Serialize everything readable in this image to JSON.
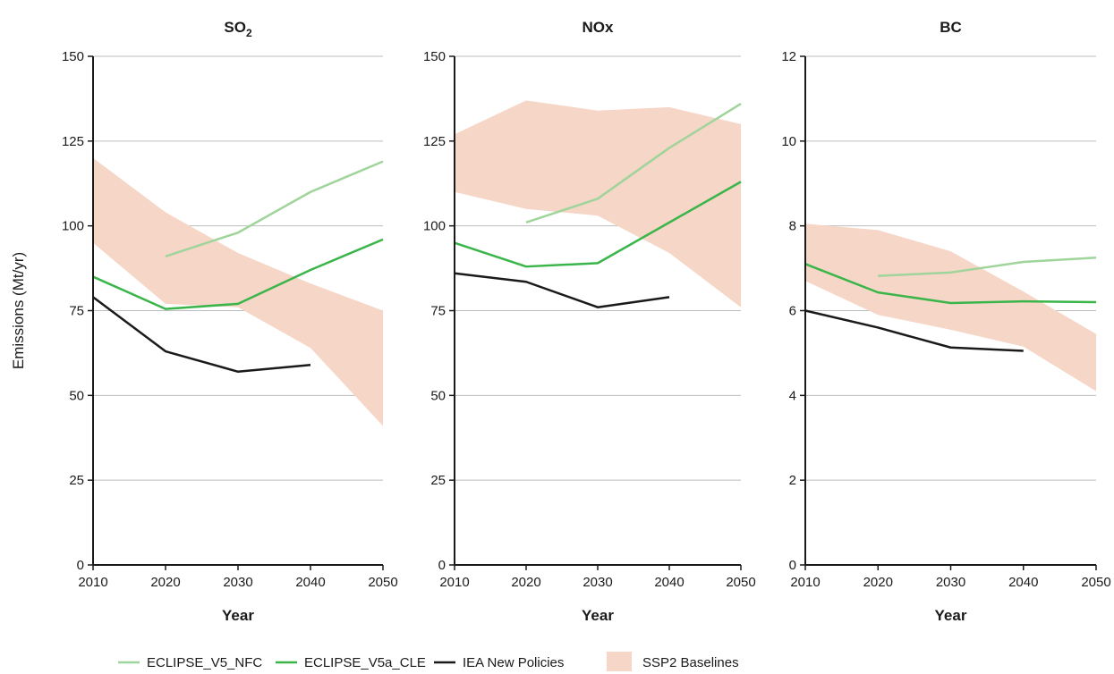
{
  "chart_data": [
    {
      "type": "line",
      "title": "SO",
      "title_subscript": "2",
      "xlabel": "Year",
      "ylabel": "Emissions (Mt/yr)",
      "xlim": [
        2010,
        2050
      ],
      "ylim": [
        0,
        150
      ],
      "xticks": [
        2010,
        2020,
        2030,
        2040,
        2050
      ],
      "yticks": [
        0,
        25,
        50,
        75,
        100,
        125,
        150
      ],
      "grid": "horizontal",
      "band": {
        "name": "SSP2 Baselines",
        "x": [
          2010,
          2020,
          2030,
          2040,
          2050
        ],
        "lower": [
          95,
          77,
          76,
          64,
          41
        ],
        "upper": [
          120,
          104,
          92,
          83,
          75
        ]
      },
      "series": [
        {
          "name": "ECLIPSE_V5_NFC",
          "x": [
            2020,
            2030,
            2040,
            2050
          ],
          "y": [
            91,
            98,
            110,
            119
          ]
        },
        {
          "name": "ECLIPSE_V5a_CLE",
          "x": [
            2010,
            2020,
            2030,
            2040,
            2050
          ],
          "y": [
            85,
            75.5,
            77,
            87,
            96
          ]
        },
        {
          "name": "IEA New Policies",
          "x": [
            2010,
            2020,
            2030,
            2040
          ],
          "y": [
            79,
            63,
            57,
            59
          ]
        }
      ]
    },
    {
      "type": "line",
      "title": "NOx",
      "title_subscript": "",
      "xlabel": "Year",
      "ylabel": "",
      "xlim": [
        2010,
        2050
      ],
      "ylim": [
        0,
        150
      ],
      "xticks": [
        2010,
        2020,
        2030,
        2040,
        2050
      ],
      "yticks": [
        0,
        25,
        50,
        75,
        100,
        125,
        150
      ],
      "grid": "horizontal",
      "band": {
        "name": "SSP2 Baselines",
        "x": [
          2010,
          2020,
          2030,
          2040,
          2050
        ],
        "lower": [
          110,
          105,
          103,
          92,
          76
        ],
        "upper": [
          127,
          137,
          134,
          135,
          130
        ]
      },
      "series": [
        {
          "name": "ECLIPSE_V5_NFC",
          "x": [
            2020,
            2030,
            2040,
            2050
          ],
          "y": [
            101,
            108,
            123,
            136
          ]
        },
        {
          "name": "ECLIPSE_V5a_CLE",
          "x": [
            2010,
            2020,
            2030,
            2040,
            2050
          ],
          "y": [
            95,
            88,
            89,
            101,
            113
          ]
        },
        {
          "name": "IEA New Policies",
          "x": [
            2010,
            2020,
            2030,
            2040
          ],
          "y": [
            86,
            83.5,
            76,
            79
          ]
        }
      ]
    },
    {
      "type": "line",
      "title": "BC",
      "title_subscript": "",
      "xlabel": "Year",
      "ylabel": "",
      "xlim": [
        2010,
        2050
      ],
      "ylim": [
        0,
        12
      ],
      "xticks": [
        2010,
        2020,
        2030,
        2040,
        2050
      ],
      "yticks": [
        0,
        2,
        4,
        6,
        8,
        10,
        12
      ],
      "grid": "horizontal",
      "band": {
        "name": "SSP2 Baselines",
        "x": [
          2010,
          2020,
          2030,
          2040,
          2050
        ],
        "lower": [
          6.7,
          5.9,
          5.55,
          5.15,
          4.1
        ],
        "upper": [
          8.05,
          7.9,
          7.4,
          6.45,
          5.45
        ]
      },
      "series": [
        {
          "name": "ECLIPSE_V5_NFC",
          "x": [
            2020,
            2030,
            2040,
            2050
          ],
          "y": [
            6.82,
            6.9,
            7.15,
            7.25
          ]
        },
        {
          "name": "ECLIPSE_V5a_CLE",
          "x": [
            2010,
            2020,
            2030,
            2040,
            2050
          ],
          "y": [
            7.1,
            6.43,
            6.18,
            6.22,
            6.2
          ]
        },
        {
          "name": "IEA New Policies",
          "x": [
            2010,
            2020,
            2030,
            2040
          ],
          "y": [
            6.0,
            5.6,
            5.13,
            5.05
          ]
        }
      ]
    }
  ],
  "legend": {
    "placement": "bottom",
    "items": [
      {
        "name": "ECLIPSE_V5_NFC",
        "kind": "line",
        "color": "#9fd49a"
      },
      {
        "name": "ECLIPSE_V5a_CLE",
        "kind": "line",
        "color": "#3ab54a"
      },
      {
        "name": "IEA New Policies",
        "kind": "line",
        "color": "#1a1a1a"
      },
      {
        "name": "SSP2 Baselines",
        "kind": "band",
        "color": "#f6d6c7"
      }
    ]
  },
  "colors": {
    "ECLIPSE_V5_NFC": "#9fd49a",
    "ECLIPSE_V5a_CLE": "#3ab54a",
    "IEA New Policies": "#1a1a1a",
    "SSP2 Baselines": "#f6d6c7",
    "grid": "#bdbdbd",
    "axis": "#1a1a1a"
  }
}
